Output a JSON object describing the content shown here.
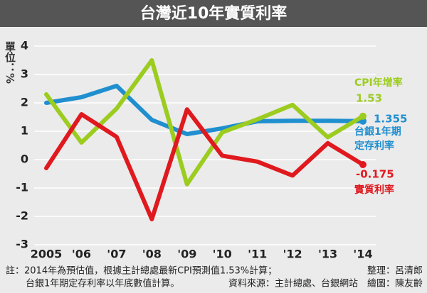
{
  "chart_data": {
    "type": "line",
    "title": "台灣近10年實質利率",
    "y_label": "單位：%",
    "categories": [
      "2005",
      "'06",
      "'07",
      "'08",
      "'09",
      "'10",
      "'11",
      "'12",
      "'13",
      "'14"
    ],
    "series": [
      {
        "name": "台銀1年期定存利率",
        "color": "#1f8fcf",
        "values": [
          2.0,
          2.2,
          2.6,
          1.4,
          0.9,
          1.1,
          1.35,
          1.37,
          1.37,
          1.355
        ]
      },
      {
        "name": "CPI年增率",
        "color": "#9ccc1f",
        "values": [
          2.3,
          0.6,
          1.8,
          3.5,
          -0.87,
          0.96,
          1.42,
          1.93,
          0.79,
          1.53
        ]
      },
      {
        "name": "實質利率",
        "color": "#e0191e",
        "values": [
          -0.3,
          1.6,
          0.8,
          -2.1,
          1.77,
          0.14,
          -0.07,
          -0.56,
          0.58,
          -0.175
        ]
      }
    ],
    "ylim": [
      -3,
      4
    ],
    "yticks": [
      -3,
      -2,
      -1,
      0,
      1,
      2,
      3,
      4
    ],
    "grid": true,
    "notes": [
      "註：2014年為預估值，根據主計總處最新CPI預測值1.53%計算；",
      "台銀1年期定存利率以年底數值計算。",
      "資料來源：主計總處、台銀網站　繪圖：陳友齡",
      "整理：呂清郎"
    ]
  }
}
